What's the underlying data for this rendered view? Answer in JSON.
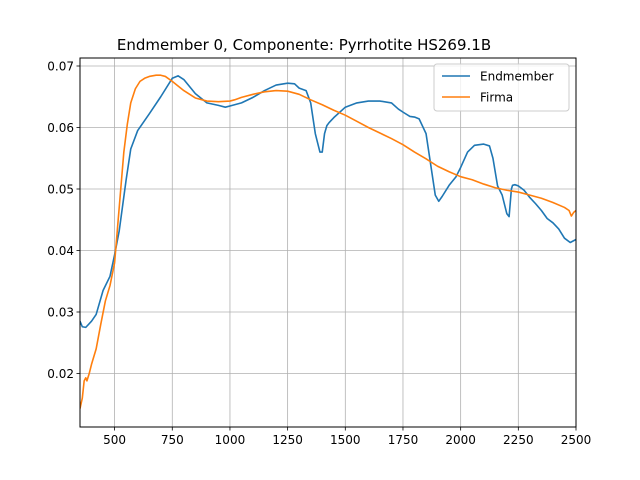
{
  "chart_data": {
    "type": "line",
    "title": "Endmember 0, Componente: Pyrrhotite HS269.1B",
    "xlabel": "",
    "ylabel": "",
    "xlim": [
      350,
      2500
    ],
    "ylim": [
      0.0113,
      0.0713
    ],
    "xticks": [
      500,
      750,
      1000,
      1250,
      1500,
      1750,
      2000,
      2250,
      2500
    ],
    "yticks": [
      0.02,
      0.03,
      0.04,
      0.05,
      0.06,
      0.07
    ],
    "ytick_labels": [
      "0.02",
      "0.03",
      "0.04",
      "0.05",
      "0.06",
      "0.07"
    ],
    "grid": true,
    "legend_position": "top-right",
    "series": [
      {
        "name": "Endmember",
        "color": "#1f77b4",
        "x": [
          350,
          360,
          375,
          400,
          420,
          450,
          480,
          500,
          520,
          550,
          570,
          600,
          650,
          700,
          750,
          775,
          800,
          850,
          900,
          950,
          980,
          1000,
          1050,
          1100,
          1150,
          1200,
          1250,
          1280,
          1300,
          1330,
          1350,
          1370,
          1390,
          1400,
          1410,
          1420,
          1430,
          1450,
          1500,
          1550,
          1600,
          1650,
          1700,
          1730,
          1750,
          1780,
          1800,
          1820,
          1850,
          1870,
          1890,
          1905,
          1920,
          1950,
          1980,
          2000,
          2030,
          2060,
          2100,
          2125,
          2140,
          2160,
          2180,
          2200,
          2210,
          2220,
          2225,
          2235,
          2250,
          2275,
          2300,
          2325,
          2350,
          2375,
          2400,
          2425,
          2450,
          2475,
          2500
        ],
        "y": [
          0.0285,
          0.0276,
          0.0275,
          0.0285,
          0.0296,
          0.0335,
          0.0358,
          0.0393,
          0.0432,
          0.0515,
          0.0565,
          0.0595,
          0.0622,
          0.065,
          0.068,
          0.0684,
          0.0678,
          0.0655,
          0.064,
          0.0636,
          0.0633,
          0.0635,
          0.064,
          0.0649,
          0.066,
          0.0669,
          0.0672,
          0.0671,
          0.0664,
          0.066,
          0.064,
          0.059,
          0.056,
          0.056,
          0.059,
          0.0603,
          0.0608,
          0.0616,
          0.0633,
          0.064,
          0.0643,
          0.0643,
          0.064,
          0.063,
          0.0625,
          0.0618,
          0.0617,
          0.0614,
          0.059,
          0.054,
          0.049,
          0.048,
          0.0488,
          0.0506,
          0.052,
          0.0535,
          0.056,
          0.0571,
          0.0573,
          0.057,
          0.055,
          0.0505,
          0.049,
          0.046,
          0.0455,
          0.05,
          0.0506,
          0.0507,
          0.0505,
          0.0498,
          0.0486,
          0.0476,
          0.0465,
          0.0452,
          0.0445,
          0.0435,
          0.042,
          0.0413,
          0.0418
        ]
      },
      {
        "name": "Firma",
        "color": "#ff7f0e",
        "x": [
          350,
          360,
          368,
          375,
          380,
          390,
          400,
          420,
          440,
          460,
          480,
          500,
          520,
          540,
          555,
          570,
          590,
          610,
          630,
          650,
          680,
          700,
          720,
          750,
          800,
          850,
          900,
          950,
          1000,
          1020,
          1050,
          1100,
          1150,
          1200,
          1250,
          1300,
          1350,
          1400,
          1450,
          1500,
          1550,
          1600,
          1650,
          1700,
          1750,
          1800,
          1850,
          1900,
          1950,
          2000,
          2050,
          2100,
          2150,
          2200,
          2250,
          2300,
          2350,
          2400,
          2450,
          2470,
          2480,
          2490,
          2500
        ],
        "y": [
          0.0143,
          0.016,
          0.0188,
          0.0193,
          0.0188,
          0.02,
          0.0215,
          0.024,
          0.028,
          0.0318,
          0.0343,
          0.038,
          0.047,
          0.056,
          0.0605,
          0.064,
          0.0663,
          0.0675,
          0.068,
          0.0683,
          0.0685,
          0.0685,
          0.0683,
          0.0675,
          0.066,
          0.0648,
          0.0643,
          0.0642,
          0.0643,
          0.0645,
          0.0649,
          0.0654,
          0.0658,
          0.066,
          0.0659,
          0.0654,
          0.0645,
          0.0637,
          0.0628,
          0.062,
          0.061,
          0.06,
          0.0591,
          0.0582,
          0.0572,
          0.056,
          0.0549,
          0.0537,
          0.0528,
          0.052,
          0.0515,
          0.0508,
          0.0502,
          0.0498,
          0.0495,
          0.049,
          0.0485,
          0.0478,
          0.047,
          0.0465,
          0.0456,
          0.0462,
          0.0465
        ]
      }
    ]
  }
}
